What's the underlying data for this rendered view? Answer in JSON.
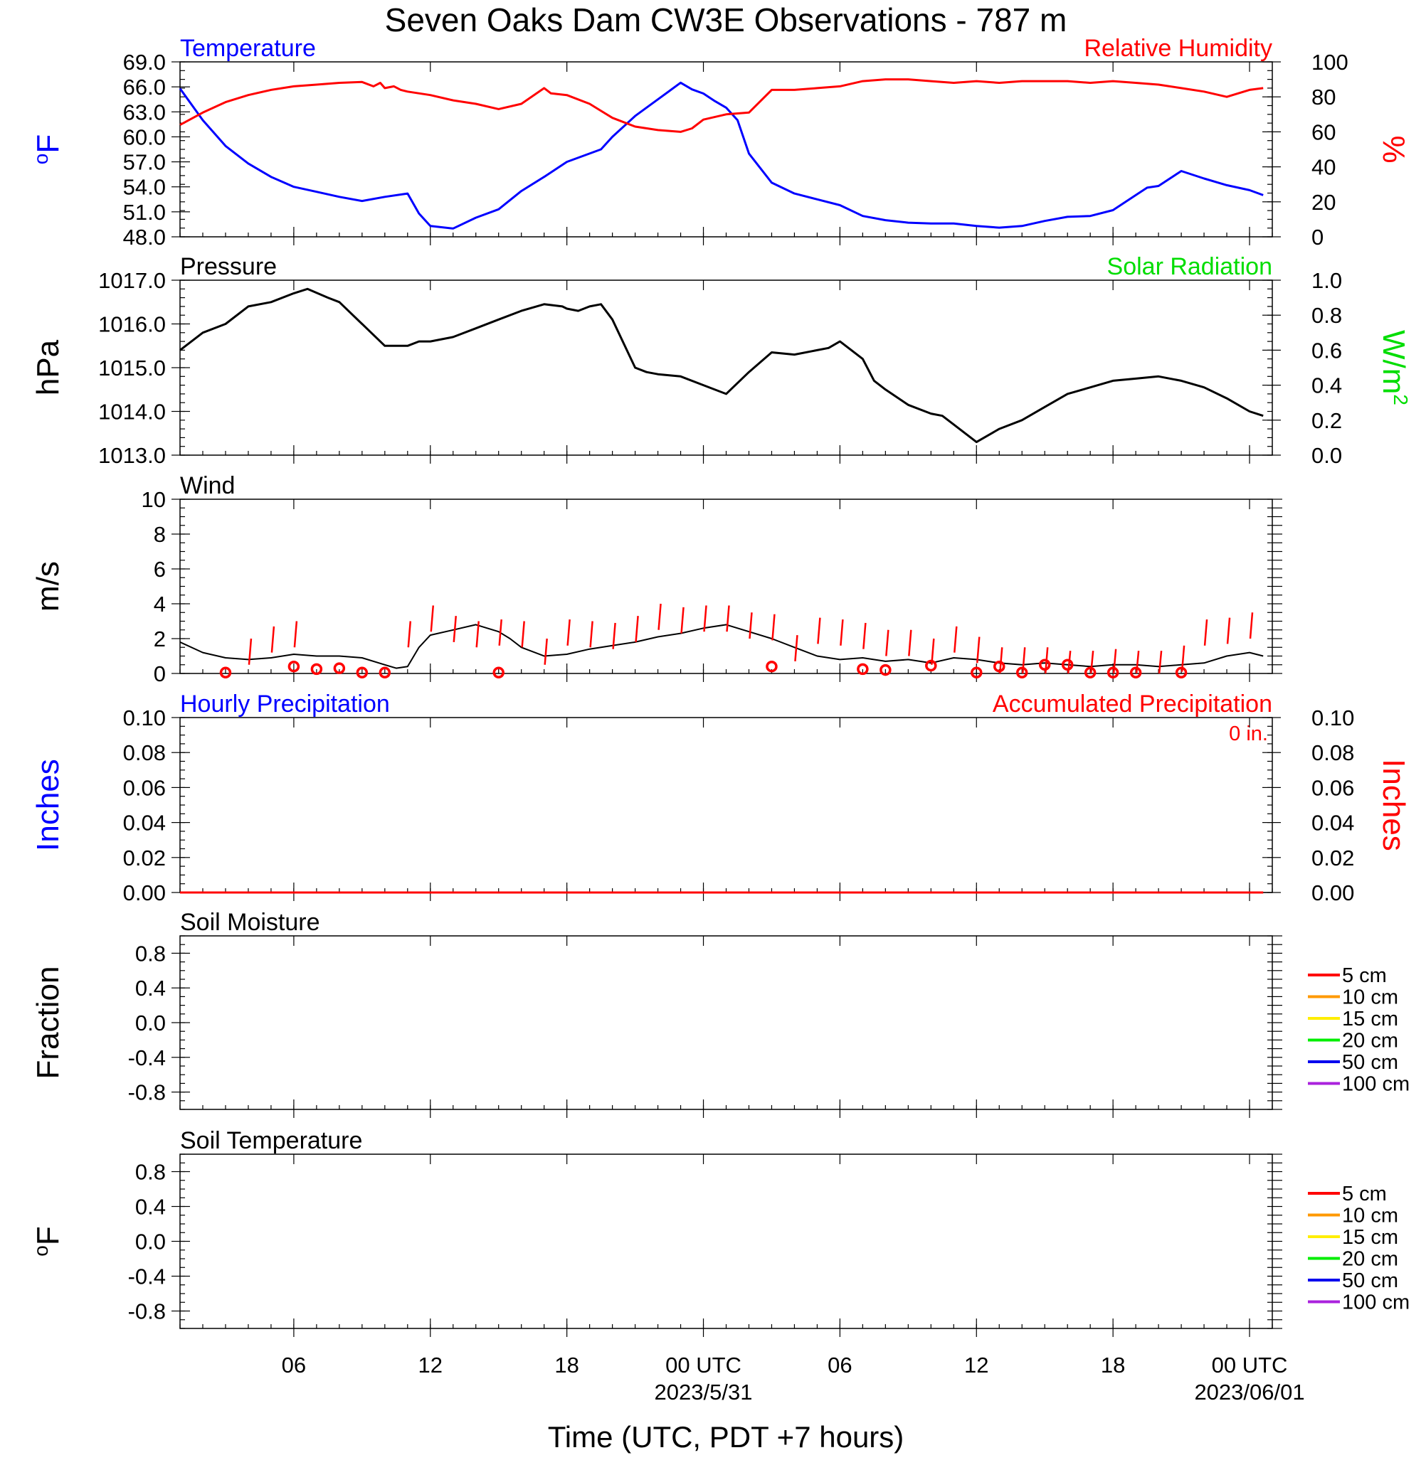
{
  "title": "Seven Oaks Dam CW3E Observations - 787 m",
  "colors": {
    "temperature": "#0000ff",
    "humidity": "#ff0000",
    "pressure": "#000000",
    "solar": "#00dd00",
    "wind": "#000000",
    "gust": "#ff0000",
    "precip_hourly": "#0000ff",
    "precip_accum": "#ff0000"
  },
  "chart_data": [
    {
      "type": "line",
      "panel": "temperature-humidity",
      "left_title": "Temperature",
      "right_title": "Relative Humidity",
      "ylabel_left": "oF",
      "ylabel_right": "%",
      "ylim_left": [
        48.0,
        69.0
      ],
      "ylim_right": [
        0,
        100
      ],
      "yticks_left": [
        "69.0",
        "66.0",
        "63.0",
        "60.0",
        "57.0",
        "54.0",
        "51.0",
        "48.0"
      ],
      "yticks_right": [
        "100",
        "80",
        "60",
        "40",
        "20",
        "0"
      ],
      "series": [
        {
          "name": "Temperature",
          "axis": "left",
          "x": [
            0,
            1,
            2,
            3,
            4,
            5,
            6,
            7,
            8,
            9,
            10,
            10.5,
            11,
            12,
            13,
            14,
            15,
            16,
            17,
            18,
            18.5,
            19,
            20,
            21,
            21.5,
            22,
            22.5,
            23,
            23.5,
            24,
            24.5,
            25,
            26,
            27,
            28,
            29,
            30,
            31,
            32,
            33,
            34,
            35,
            36,
            37,
            38,
            39,
            40,
            41,
            42,
            42.5,
            43,
            44,
            45,
            46,
            47,
            47.6
          ],
          "y": [
            65.8,
            62.0,
            58.9,
            56.8,
            55.2,
            54.0,
            53.4,
            52.8,
            52.3,
            52.8,
            53.2,
            50.8,
            49.3,
            49.0,
            50.3,
            51.3,
            53.5,
            55.2,
            57.0,
            58.0,
            58.5,
            60.0,
            62.5,
            64.5,
            65.5,
            66.5,
            65.7,
            65.2,
            64.3,
            63.5,
            62.0,
            58.0,
            54.5,
            53.2,
            52.5,
            51.8,
            50.5,
            50.0,
            49.7,
            49.6,
            49.6,
            49.3,
            49.1,
            49.3,
            49.9,
            50.4,
            50.5,
            51.2,
            53.0,
            53.9,
            54.1,
            55.9,
            55.0,
            54.2,
            53.6,
            53.0
          ]
        },
        {
          "name": "Relative Humidity",
          "axis": "right",
          "x": [
            0,
            1,
            2,
            3,
            4,
            5,
            6,
            7,
            8,
            8.5,
            8.8,
            9,
            9.4,
            9.7,
            10,
            11,
            12,
            13,
            14,
            15,
            16,
            16.3,
            17,
            18,
            18.5,
            19,
            20,
            21,
            22,
            22.5,
            23,
            24,
            25,
            26,
            27,
            28,
            29,
            30,
            31,
            32,
            33,
            34,
            35,
            36,
            37,
            38,
            39,
            40,
            41,
            42,
            43,
            44,
            45,
            46,
            47,
            47.6
          ],
          "y": [
            64,
            71,
            77,
            81,
            84,
            86,
            87,
            88,
            88.5,
            86,
            88,
            85,
            86,
            84,
            83,
            81,
            78,
            76,
            73,
            76,
            85,
            82,
            81,
            76,
            72,
            68,
            63,
            61,
            60,
            62,
            67,
            70,
            71,
            84,
            84,
            85,
            86,
            89,
            90,
            90,
            89,
            88,
            89,
            88,
            89,
            89,
            89,
            88,
            89,
            88,
            87,
            85,
            83,
            80,
            84,
            85
          ]
        }
      ]
    },
    {
      "type": "line",
      "panel": "pressure-solar",
      "left_title": "Pressure",
      "right_title": "Solar Radiation",
      "ylabel_left": "hPa",
      "ylabel_right": "W/m2",
      "ylim_left": [
        1013.0,
        1017.0
      ],
      "ylim_right": [
        0.0,
        1.0
      ],
      "yticks_left": [
        "1017.0",
        "1016.0",
        "1015.0",
        "1014.0",
        "1013.0"
      ],
      "yticks_right": [
        "1.0",
        "0.8",
        "0.6",
        "0.4",
        "0.2",
        "0.0"
      ],
      "series": [
        {
          "name": "Pressure",
          "axis": "left",
          "x": [
            0,
            1,
            2,
            3,
            4,
            5,
            5.6,
            6.5,
            7,
            8,
            9,
            10,
            10.5,
            11,
            12,
            13,
            14,
            15,
            16,
            16.8,
            17,
            17.5,
            18,
            18.5,
            19,
            20,
            20.5,
            21,
            22,
            23,
            24,
            25,
            26,
            27,
            28,
            28.5,
            29,
            30,
            30.5,
            31,
            32,
            33,
            33.5,
            34,
            35,
            36,
            37,
            38,
            39,
            40,
            41,
            42,
            43,
            44,
            45,
            46,
            47,
            47.6
          ],
          "y": [
            1015.4,
            1015.8,
            1016.0,
            1016.4,
            1016.5,
            1016.7,
            1016.8,
            1016.6,
            1016.5,
            1016.0,
            1015.5,
            1015.5,
            1015.6,
            1015.6,
            1015.7,
            1015.9,
            1016.1,
            1016.3,
            1016.45,
            1016.4,
            1016.35,
            1016.3,
            1016.4,
            1016.45,
            1016.1,
            1015.0,
            1014.9,
            1014.85,
            1014.8,
            1014.6,
            1014.4,
            1014.9,
            1015.35,
            1015.3,
            1015.4,
            1015.45,
            1015.6,
            1015.2,
            1014.7,
            1014.5,
            1014.15,
            1013.95,
            1013.9,
            1013.7,
            1013.3,
            1013.6,
            1013.8,
            1014.1,
            1014.4,
            1014.55,
            1014.7,
            1014.75,
            1014.8,
            1014.7,
            1014.55,
            1014.3,
            1014.0,
            1013.9
          ]
        }
      ]
    },
    {
      "type": "line",
      "panel": "wind",
      "left_title": "Wind",
      "ylabel_left": "m/s",
      "ylim_left": [
        0,
        10
      ],
      "yticks_left": [
        "10",
        "8",
        "6",
        "4",
        "2",
        "0"
      ],
      "series": [
        {
          "name": "Wind speed",
          "axis": "left",
          "x": [
            0,
            1,
            2,
            3,
            4,
            5,
            6,
            7,
            8,
            9,
            9.5,
            10,
            10.5,
            11,
            12,
            13,
            14,
            14.5,
            15,
            16,
            17,
            18,
            19,
            20,
            21,
            22,
            23,
            24,
            25,
            26,
            27,
            28,
            29,
            30,
            31,
            32,
            33,
            34,
            35,
            36,
            37,
            38,
            39,
            40,
            41,
            42,
            43,
            44,
            45,
            46,
            47,
            47.6
          ],
          "y": [
            1.8,
            1.2,
            0.9,
            0.8,
            0.9,
            1.1,
            1.0,
            1.0,
            0.9,
            0.5,
            0.3,
            0.4,
            1.5,
            2.2,
            2.5,
            2.8,
            2.4,
            2.0,
            1.5,
            1.0,
            1.1,
            1.4,
            1.6,
            1.8,
            2.1,
            2.3,
            2.6,
            2.8,
            2.4,
            2.0,
            1.5,
            1.0,
            0.8,
            0.9,
            0.7,
            0.8,
            0.6,
            0.9,
            0.8,
            0.6,
            0.5,
            0.6,
            0.5,
            0.4,
            0.5,
            0.5,
            0.4,
            0.5,
            0.6,
            1.0,
            1.2,
            1.0
          ]
        }
      ],
      "gusts_x": [
        3,
        4,
        5,
        10,
        11,
        12,
        13,
        14,
        15,
        16,
        17,
        18,
        19,
        20,
        21,
        22,
        23,
        24,
        25,
        26,
        27,
        28,
        29,
        30,
        31,
        32,
        33,
        34,
        35,
        36,
        37,
        38,
        39,
        40,
        41,
        42,
        43,
        44,
        45,
        46,
        47
      ],
      "gusts_y": [
        2.0,
        2.7,
        3.0,
        3.0,
        3.9,
        3.3,
        3.0,
        3.1,
        3.0,
        2.0,
        3.1,
        3.0,
        2.9,
        3.3,
        4.0,
        3.8,
        3.9,
        3.9,
        3.5,
        3.4,
        2.2,
        3.2,
        3.1,
        2.9,
        2.5,
        2.5,
        2.0,
        2.7,
        2.1,
        1.5,
        1.5,
        1.5,
        1.3,
        1.3,
        1.4,
        1.3,
        1.3,
        1.6,
        3.1,
        3.2,
        3.5
      ],
      "calm_markers_x": [
        2,
        5,
        6,
        7,
        8,
        9,
        14,
        26,
        30,
        31,
        33,
        35,
        36,
        37,
        38,
        39,
        40,
        41,
        42,
        44
      ],
      "calm_markers_y": [
        0.05,
        0.4,
        0.25,
        0.3,
        0.05,
        0.05,
        0.05,
        0.4,
        0.25,
        0.2,
        0.45,
        0.05,
        0.4,
        0.05,
        0.5,
        0.5,
        0.05,
        0.05,
        0.05,
        0.05
      ]
    },
    {
      "type": "line",
      "panel": "precipitation",
      "left_title": "Hourly Precipitation",
      "right_title": "Accumulated Precipitation",
      "annotation": "0 in.",
      "ylabel_left": "Inches",
      "ylabel_right": "Inches",
      "ylim_left": [
        0.0,
        0.1
      ],
      "ylim_right": [
        0.0,
        0.1
      ],
      "yticks_left": [
        "0.10",
        "0.08",
        "0.06",
        "0.04",
        "0.02",
        "0.00"
      ],
      "yticks_right": [
        "0.10",
        "0.08",
        "0.06",
        "0.04",
        "0.02",
        "0.00"
      ],
      "series": [
        {
          "name": "Accumulated Precipitation",
          "axis": "right",
          "x": [
            0,
            47.6
          ],
          "y": [
            0,
            0
          ]
        }
      ]
    },
    {
      "type": "line",
      "panel": "soil-moisture",
      "left_title": "Soil Moisture",
      "ylabel_left": "Fraction",
      "ylim_left": [
        -1.0,
        1.0
      ],
      "yticks_left": [
        "0.8",
        "0.4",
        "0.0",
        "-0.4",
        "-0.8"
      ],
      "legend": [
        {
          "name": "5 cm",
          "color": "#ff0000"
        },
        {
          "name": "10 cm",
          "color": "#ff9900"
        },
        {
          "name": "15 cm",
          "color": "#ffee00"
        },
        {
          "name": "20 cm",
          "color": "#00ee00"
        },
        {
          "name": "50 cm",
          "color": "#0000ee"
        },
        {
          "name": "100 cm",
          "color": "#aa22dd"
        }
      ]
    },
    {
      "type": "line",
      "panel": "soil-temperature",
      "left_title": "Soil Temperature",
      "ylabel_left": "oF",
      "ylim_left": [
        -1.0,
        1.0
      ],
      "yticks_left": [
        "0.8",
        "0.4",
        "0.0",
        "-0.4",
        "-0.8"
      ],
      "legend": [
        {
          "name": "5 cm",
          "color": "#ff0000"
        },
        {
          "name": "10 cm",
          "color": "#ff9900"
        },
        {
          "name": "15 cm",
          "color": "#ffee00"
        },
        {
          "name": "20 cm",
          "color": "#00ee00"
        },
        {
          "name": "50 cm",
          "color": "#0000ee"
        },
        {
          "name": "100 cm",
          "color": "#aa22dd"
        }
      ]
    }
  ],
  "x_axis": {
    "range_hours": [
      0,
      48
    ],
    "ticks": [
      {
        "x": 5,
        "label": "06",
        "date": ""
      },
      {
        "x": 11,
        "label": "12",
        "date": ""
      },
      {
        "x": 17,
        "label": "18",
        "date": ""
      },
      {
        "x": 23,
        "label": "00 UTC",
        "date": "2023/5/31"
      },
      {
        "x": 29,
        "label": "06",
        "date": ""
      },
      {
        "x": 35,
        "label": "12",
        "date": ""
      },
      {
        "x": 41,
        "label": "18",
        "date": ""
      },
      {
        "x": 47,
        "label": "00 UTC",
        "date": "2023/06/01"
      }
    ],
    "xlabel": "Time (UTC, PDT +7 hours)"
  }
}
